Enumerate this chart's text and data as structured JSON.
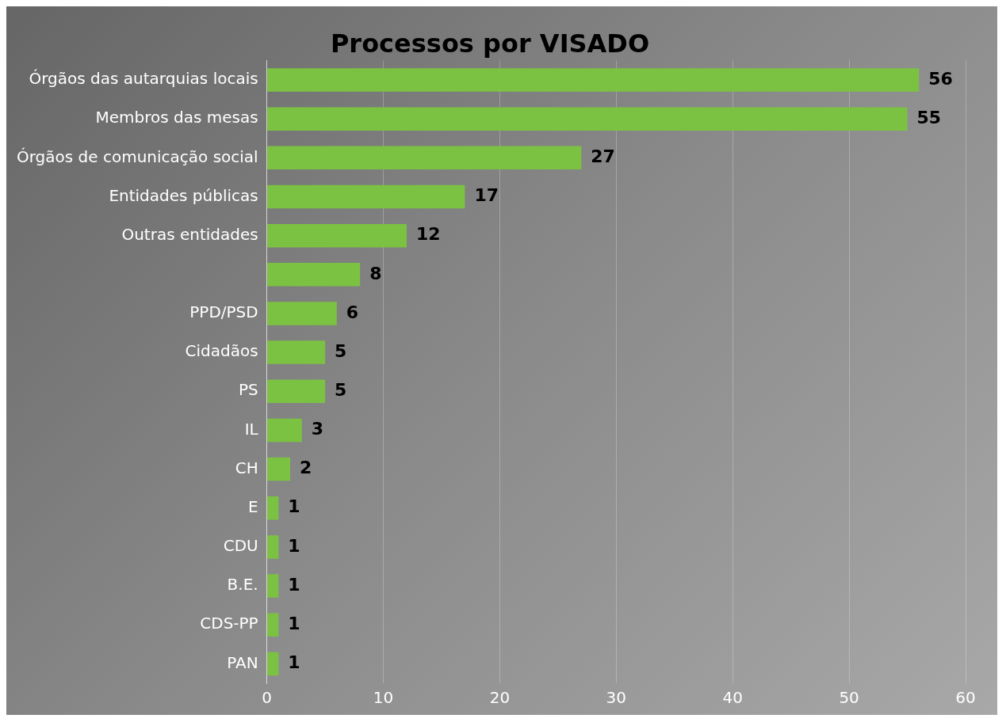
{
  "chart_data": {
    "type": "bar",
    "title": "Processos por VISADO",
    "orientation": "horizontal",
    "categories": [
      "Órgãos das autarquias locais",
      "Membros das mesas",
      "Órgãos de comunicação social",
      "Entidades públicas",
      "Outras entidades",
      null,
      "PPD/PSD",
      "Cidadãos",
      "PS",
      "IL",
      "CH",
      "E",
      "CDU",
      "B.E.",
      "CDS-PP",
      "PAN"
    ],
    "values": [
      56,
      55,
      27,
      17,
      12,
      8,
      6,
      5,
      5,
      3,
      2,
      1,
      1,
      1,
      1,
      1
    ],
    "color": "#7cc242",
    "xlim": [
      0,
      60
    ],
    "xticks": [
      0,
      10,
      20,
      30,
      40,
      50,
      60
    ],
    "grid": "x",
    "data_labels": true
  }
}
